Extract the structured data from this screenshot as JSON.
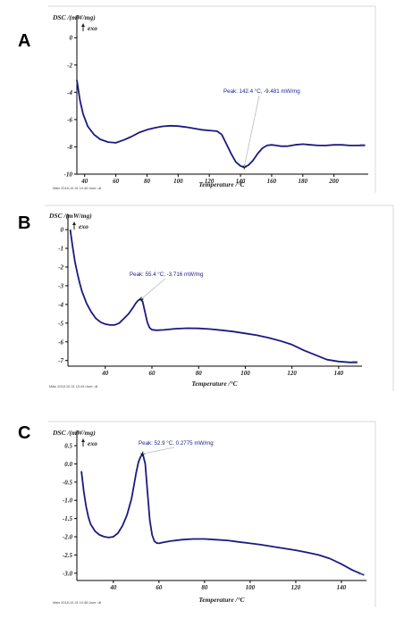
{
  "panels": [
    "A",
    "B",
    "C"
  ],
  "chart_data": [
    {
      "panel": "A",
      "type": "line",
      "ylabel": "DSC /(mW/mg)",
      "exo_label": "exo",
      "xlabel": "Temperature /°C",
      "xlim": [
        35,
        222
      ],
      "ylim": [
        -10,
        0.8
      ],
      "xticks": [
        40,
        60,
        80,
        100,
        120,
        140,
        160,
        180,
        200
      ],
      "yticks": [
        0,
        -2,
        -4,
        -6,
        -8,
        -10
      ],
      "ytick_labels": [
        "0",
        "-2",
        "-4",
        "-6",
        "-8",
        "-10"
      ],
      "series": [
        {
          "color": "#1a1a80",
          "x": [
            35,
            37,
            39,
            42,
            46,
            50,
            55,
            60,
            65,
            70,
            75,
            80,
            85,
            90,
            95,
            100,
            105,
            110,
            115,
            120,
            125,
            128,
            131,
            134,
            137,
            140,
            142.4,
            145,
            148,
            151,
            154,
            157,
            160,
            163,
            166,
            170,
            175,
            180,
            185,
            190,
            195,
            200,
            205,
            210,
            215,
            220
          ],
          "y": [
            -3.1,
            -4.6,
            -5.6,
            -6.5,
            -7.1,
            -7.45,
            -7.65,
            -7.7,
            -7.5,
            -7.25,
            -6.95,
            -6.75,
            -6.6,
            -6.5,
            -6.45,
            -6.48,
            -6.55,
            -6.65,
            -6.75,
            -6.8,
            -6.85,
            -7.1,
            -7.8,
            -8.5,
            -9.1,
            -9.4,
            -9.48,
            -9.35,
            -9.0,
            -8.5,
            -8.1,
            -7.9,
            -7.85,
            -7.9,
            -7.95,
            -7.95,
            -7.85,
            -7.8,
            -7.85,
            -7.9,
            -7.9,
            -7.85,
            -7.85,
            -7.9,
            -7.9,
            -7.9
          ]
        }
      ],
      "peak": {
        "x": 142.4,
        "y": -9.481,
        "label": "Peak: 142.4 °C, -9.481 mW/mg"
      },
      "footer": "Main    2018-10-31 10:46    User: ull"
    },
    {
      "panel": "B",
      "type": "line",
      "ylabel": "DSC /(mW/mg)",
      "exo_label": "exo",
      "xlabel": "Temperature /°C",
      "xlim": [
        24,
        150
      ],
      "ylim": [
        -7.3,
        0.1
      ],
      "xticks": [
        40,
        60,
        80,
        100,
        120,
        140
      ],
      "yticks": [
        0,
        -1,
        -2,
        -3,
        -4,
        -5,
        -6,
        -7
      ],
      "ytick_labels": [
        "0",
        "-1",
        "-2",
        "-3",
        "-4",
        "-5",
        "-6",
        "-7"
      ],
      "series": [
        {
          "color": "#1a1a80",
          "x": [
            25,
            26,
            27,
            28,
            29,
            30,
            32,
            34,
            36,
            38,
            40,
            42,
            44,
            46,
            48,
            50,
            52,
            53,
            54,
            55,
            55.4,
            56,
            57,
            58,
            59,
            60,
            62,
            65,
            70,
            75,
            80,
            85,
            90,
            95,
            100,
            105,
            110,
            115,
            120,
            125,
            130,
            135,
            140,
            145,
            148
          ],
          "y": [
            0,
            -0.9,
            -1.7,
            -2.3,
            -2.85,
            -3.3,
            -3.95,
            -4.4,
            -4.75,
            -4.95,
            -5.05,
            -5.1,
            -5.1,
            -5.0,
            -4.75,
            -4.5,
            -4.15,
            -3.95,
            -3.8,
            -3.72,
            -3.716,
            -3.85,
            -4.4,
            -4.95,
            -5.25,
            -5.35,
            -5.38,
            -5.36,
            -5.3,
            -5.27,
            -5.28,
            -5.32,
            -5.38,
            -5.45,
            -5.55,
            -5.65,
            -5.78,
            -5.95,
            -6.15,
            -6.45,
            -6.7,
            -6.95,
            -7.05,
            -7.1,
            -7.1
          ]
        }
      ],
      "peak": {
        "x": 55.4,
        "y": -3.716,
        "label": "Peak: 55.4 °C, -3.716 mW/mg"
      },
      "footer": "Main    2018-10-31 10:44    User: ull"
    },
    {
      "panel": "C",
      "type": "line",
      "ylabel": "DSC /(mW/mg)",
      "exo_label": "exo",
      "xlabel": "Temperature /°C",
      "xlim": [
        24,
        151
      ],
      "ylim": [
        -3.2,
        0.55
      ],
      "xticks": [
        40,
        60,
        80,
        100,
        120,
        140
      ],
      "yticks": [
        0.5,
        0.0,
        -0.5,
        -1.0,
        -1.5,
        -2.0,
        -2.5,
        -3.0
      ],
      "ytick_labels": [
        "0.5",
        "0.0",
        "-0.5",
        "-1.0",
        "-1.5",
        "-2.0",
        "-2.5",
        "-3.0"
      ],
      "series": [
        {
          "color": "#1a1a80",
          "x": [
            26,
            27,
            28,
            29,
            30,
            32,
            34,
            36,
            38,
            40,
            42,
            44,
            46,
            48,
            49,
            50,
            51,
            52,
            52.9,
            54,
            55,
            56,
            57,
            58,
            59,
            60,
            62,
            65,
            70,
            75,
            80,
            85,
            90,
            95,
            100,
            105,
            110,
            115,
            120,
            125,
            130,
            135,
            140,
            145,
            150
          ],
          "y": [
            -0.2,
            -0.75,
            -1.15,
            -1.45,
            -1.65,
            -1.85,
            -1.95,
            -2.0,
            -2.02,
            -2.0,
            -1.9,
            -1.7,
            -1.4,
            -0.95,
            -0.6,
            -0.25,
            0.05,
            0.2,
            0.2775,
            0.0,
            -0.8,
            -1.55,
            -1.95,
            -2.12,
            -2.17,
            -2.18,
            -2.15,
            -2.12,
            -2.08,
            -2.06,
            -2.06,
            -2.08,
            -2.1,
            -2.14,
            -2.18,
            -2.22,
            -2.27,
            -2.32,
            -2.37,
            -2.43,
            -2.5,
            -2.6,
            -2.75,
            -2.92,
            -3.05
          ]
        }
      ],
      "peak": {
        "x": 52.9,
        "y": 0.2775,
        "label": "Peak: 52.9 °C, 0.2775 mW/mg"
      },
      "footer": "Main    2018-10-31 10:48    User: ull"
    }
  ]
}
